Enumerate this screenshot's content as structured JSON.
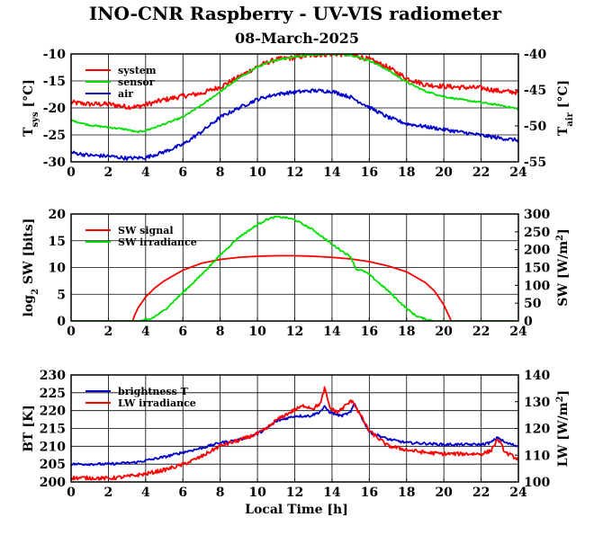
{
  "figure": {
    "title": "INO-CNR Raspberry - UV-VIS radiometer",
    "subtitle": "08-March-2025"
  },
  "chart_data": [
    {
      "type": "line",
      "xlabel": "",
      "x_ticks": [
        "0",
        "2",
        "4",
        "6",
        "8",
        "10",
        "12",
        "14",
        "16",
        "18",
        "20",
        "22",
        "24"
      ],
      "xlim": [
        0,
        24
      ],
      "grid": true,
      "legend_position": "top-left",
      "left_axis": {
        "label_main": "T",
        "label_sub": "sys",
        "label_unit": " [°C]",
        "ylim": [
          -30,
          -10
        ],
        "ticks": [
          "-30",
          "-25",
          "-20",
          "-15",
          "-10"
        ]
      },
      "right_axis": {
        "label_main": "T",
        "label_sub": "air",
        "label_unit": " [°C]",
        "ylim": [
          -55,
          -40
        ],
        "ticks": [
          "-55",
          "-50",
          "-45",
          "-40"
        ]
      },
      "series": [
        {
          "name": "system",
          "color": "#ff0000",
          "axis": "left",
          "noise": 0.45,
          "x": [
            0,
            1,
            2,
            3,
            3.5,
            4,
            5,
            6,
            7,
            8,
            9,
            10,
            11,
            12,
            12.5,
            13,
            14,
            15,
            16,
            17,
            18,
            19,
            20,
            21,
            22,
            23,
            24
          ],
          "values": [
            -19,
            -19.3,
            -19.3,
            -19.8,
            -19.8,
            -19.4,
            -18.5,
            -17.8,
            -17.3,
            -16.1,
            -14.3,
            -12.3,
            -11,
            -10.7,
            -10.4,
            -10.2,
            -10,
            -10.1,
            -11,
            -12.5,
            -14.5,
            -15.7,
            -16,
            -16.2,
            -16.3,
            -16.9,
            -17.1
          ]
        },
        {
          "name": "sensor",
          "color": "#00e000",
          "axis": "left",
          "noise": 0.15,
          "x": [
            0,
            1,
            2,
            3,
            3.5,
            4,
            5,
            6,
            7,
            8,
            9,
            10,
            11,
            12,
            13,
            14,
            15,
            16,
            17,
            18,
            19,
            20,
            21,
            22,
            23,
            24
          ],
          "values": [
            -22.3,
            -23.2,
            -23.6,
            -24,
            -24.5,
            -24.2,
            -23,
            -21.7,
            -19.5,
            -17,
            -14.5,
            -12.4,
            -11.1,
            -10.5,
            -10.1,
            -10,
            -10.2,
            -11.2,
            -13,
            -15.2,
            -16.9,
            -17.9,
            -18.5,
            -19,
            -19.5,
            -20.2
          ]
        },
        {
          "name": "air",
          "color": "#0000cc",
          "axis": "right",
          "noise": 0.25,
          "x": [
            0,
            1,
            2,
            3,
            4,
            5,
            6,
            7,
            8,
            9,
            10,
            11,
            12,
            13,
            14,
            15,
            16,
            17,
            18,
            19,
            20,
            21,
            22,
            23,
            24
          ],
          "values": [
            -53.7,
            -54.1,
            -54.2,
            -54.5,
            -54.4,
            -53.6,
            -52.6,
            -50.8,
            -48.8,
            -47.5,
            -46.3,
            -45.6,
            -45.3,
            -45.1,
            -45.2,
            -46,
            -47.4,
            -48.8,
            -49.7,
            -50.1,
            -50.5,
            -50.9,
            -51.3,
            -51.7,
            -52
          ]
        }
      ]
    },
    {
      "type": "line",
      "xlabel": "",
      "x_ticks": [
        "0",
        "2",
        "4",
        "6",
        "8",
        "10",
        "12",
        "14",
        "16",
        "18",
        "20",
        "22",
        "24"
      ],
      "xlim": [
        0,
        24
      ],
      "grid": true,
      "legend_position": "top-left",
      "left_axis": {
        "label_main": "log",
        "label_sub": "2",
        "label_unit": " SW [bits]",
        "ylim": [
          0,
          20
        ],
        "ticks": [
          "0",
          "5",
          "10",
          "15",
          "20"
        ]
      },
      "right_axis": {
        "label_main": "SW [W/m",
        "label_sup": "2",
        "label_unit": "]",
        "ylim": [
          0,
          300
        ],
        "ticks": [
          "0",
          "50",
          "100",
          "150",
          "200",
          "250",
          "300"
        ]
      },
      "series": [
        {
          "name": "SW signal",
          "color": "#ff0000",
          "axis": "left",
          "noise": 0,
          "x": [
            0,
            3.3,
            3.4,
            3.6,
            4,
            4.5,
            5,
            5.5,
            6,
            7,
            8,
            9,
            10,
            11,
            12,
            13,
            14,
            15,
            16,
            17,
            18,
            19,
            19.5,
            20,
            20.2,
            20.4,
            24
          ],
          "values": [
            0,
            0,
            1,
            2.5,
            4.5,
            6.2,
            7.5,
            8.5,
            9.5,
            10.8,
            11.5,
            11.9,
            12.1,
            12.2,
            12.2,
            12.1,
            11.9,
            11.6,
            11.1,
            10.3,
            9.2,
            7.2,
            5.6,
            3,
            1.5,
            0,
            0
          ]
        },
        {
          "name": "SW irradiance",
          "color": "#00e000",
          "axis": "right",
          "noise": 2.5,
          "x": [
            0,
            3.7,
            4.3,
            5,
            6,
            7,
            8,
            9,
            10,
            10.5,
            11,
            11.5,
            12,
            13,
            14,
            15,
            15.3,
            15.7,
            16,
            17,
            18,
            18.5,
            19,
            19.5,
            24
          ],
          "values": [
            0,
            0,
            6,
            30,
            80,
            130,
            185,
            235,
            270,
            285,
            292,
            290,
            284,
            255,
            215,
            180,
            145,
            140,
            130,
            85,
            35,
            15,
            5,
            0,
            0
          ]
        }
      ]
    },
    {
      "type": "line",
      "xlabel": "Local Time [h]",
      "x_ticks": [
        "0",
        "2",
        "4",
        "6",
        "8",
        "10",
        "12",
        "14",
        "16",
        "18",
        "20",
        "22",
        "24"
      ],
      "xlim": [
        0,
        24
      ],
      "grid": true,
      "legend_position": "top-left",
      "left_axis": {
        "label_main": "BT [K]",
        "label_sub": "",
        "label_unit": "",
        "ylim": [
          200,
          230
        ],
        "ticks": [
          "200",
          "205",
          "210",
          "215",
          "220",
          "225",
          "230"
        ]
      },
      "right_axis": {
        "label_main": "LW [W/m",
        "label_sup": "2",
        "label_unit": "]",
        "ylim": [
          100,
          140
        ],
        "ticks": [
          "100",
          "110",
          "120",
          "130",
          "140"
        ]
      },
      "series": [
        {
          "name": "brightness T",
          "color": "#0000cc",
          "axis": "left",
          "noise": 0.35,
          "x": [
            0,
            2,
            3.5,
            4,
            5,
            6,
            7,
            8,
            9,
            10,
            10.5,
            11,
            12,
            12.8,
            13.3,
            13.6,
            13.9,
            14.5,
            15,
            15.2,
            15.6,
            16,
            17,
            18,
            19,
            20,
            21,
            22,
            22.5,
            22.9,
            23.3,
            24
          ],
          "values": [
            205,
            205,
            205.5,
            206,
            207,
            208.3,
            209.5,
            211,
            211.8,
            213.5,
            215,
            217,
            218.5,
            218.5,
            219.5,
            221,
            219.5,
            218.5,
            219.5,
            222,
            218,
            214,
            212,
            211,
            210.8,
            210.5,
            210.5,
            210.5,
            211,
            212.5,
            211,
            210
          ]
        },
        {
          "name": "LW irradiance",
          "color": "#ff0000",
          "axis": "right",
          "noise": 0.7,
          "x": [
            0,
            1,
            2,
            3,
            4,
            5,
            6,
            7,
            8,
            9,
            10,
            10.5,
            11,
            12,
            12.5,
            13,
            13.4,
            13.6,
            13.9,
            14.3,
            14.8,
            15.1,
            15.4,
            16,
            17,
            18,
            19,
            20,
            21,
            22,
            22.5,
            22.9,
            23.3,
            24
          ],
          "values": [
            101.5,
            101.5,
            101.3,
            102,
            103,
            104.5,
            106.5,
            109.5,
            113.5,
            115.5,
            118,
            120,
            123,
            127,
            128.5,
            127.5,
            129.5,
            135,
            127.5,
            126,
            129,
            130.5,
            126.5,
            119,
            113.5,
            112,
            111,
            110.5,
            110.5,
            110.5,
            111.5,
            116,
            111,
            108.5
          ]
        }
      ]
    }
  ]
}
